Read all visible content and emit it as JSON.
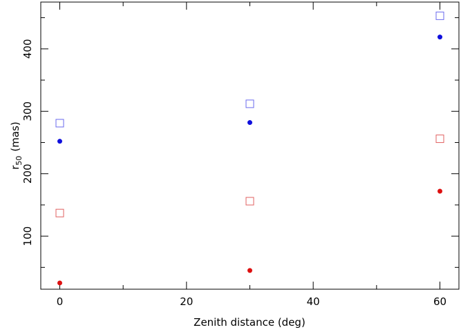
{
  "chart_data": {
    "type": "scatter",
    "xlabel": "Zenith distance (deg)",
    "ylabel": {
      "base": "r",
      "subscript": "50",
      "unit": "(mas)"
    },
    "xlim": [
      -3,
      63
    ],
    "ylim": [
      15,
      475
    ],
    "xticks": [
      0,
      20,
      40,
      60
    ],
    "yticks": [
      100,
      200,
      300,
      400
    ],
    "grid": false,
    "series": [
      {
        "marker": "open-square",
        "color": "#6a6aee",
        "x": [
          0,
          30,
          60
        ],
        "y": [
          281,
          312,
          453
        ]
      },
      {
        "marker": "filled-circle",
        "color": "#1010dd",
        "x": [
          0,
          30,
          60
        ],
        "y": [
          252,
          282,
          419
        ]
      },
      {
        "marker": "open-square",
        "color": "#e06060",
        "x": [
          0,
          30,
          60
        ],
        "y": [
          137,
          156,
          256
        ]
      },
      {
        "marker": "filled-circle",
        "color": "#dd1010",
        "x": [
          0,
          30,
          60
        ],
        "y": [
          25,
          45,
          172
        ]
      }
    ]
  }
}
